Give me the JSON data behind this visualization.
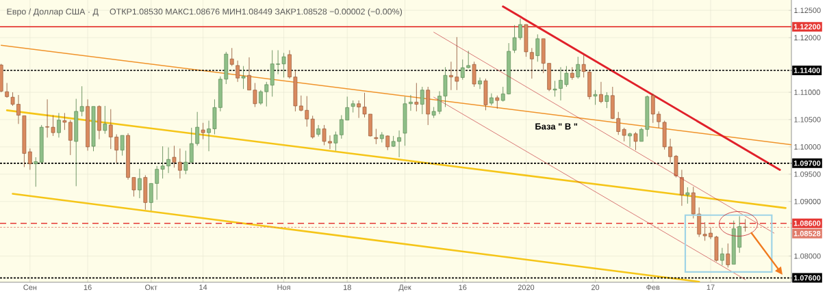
{
  "chart_data": {
    "type": "candlestick",
    "title": "Евро / Доллар США · Д",
    "subtitle": "ОТКР1.08530 МАКС1.08676 МИН1.08449 ЗАКР1.08528 −0.00002 (−0.00%)",
    "annotations": [
      "База \" В \""
    ],
    "categories": [
      null,
      null,
      null,
      null,
      null,
      "Сен",
      null,
      null,
      null,
      null,
      null,
      null,
      null,
      null,
      null,
      "16",
      null,
      null,
      null,
      null,
      null,
      null,
      null,
      null,
      null,
      null,
      "Окт",
      null,
      null,
      null,
      null,
      null,
      null,
      null,
      null,
      "14",
      null,
      null,
      null,
      null,
      null,
      null,
      null,
      null,
      null,
      null,
      null,
      null,
      null,
      "Ноя",
      null,
      null,
      null,
      null,
      null,
      null,
      null,
      null,
      null,
      null,
      "18",
      null,
      null,
      null,
      null,
      null,
      null,
      null,
      null,
      null,
      "Дек",
      null,
      null,
      null,
      null,
      null,
      null,
      null,
      null,
      null,
      "16",
      null,
      null,
      null,
      null,
      null,
      null,
      null,
      null,
      null,
      null,
      "2020",
      null,
      null,
      null,
      null,
      null,
      null,
      null,
      null,
      null,
      null,
      null,
      "20",
      null,
      null,
      null,
      null,
      null,
      null,
      null,
      null,
      null,
      "Фев",
      null,
      null,
      null,
      null,
      null,
      null,
      null,
      null,
      null,
      "17",
      null,
      null,
      null,
      null,
      null,
      null,
      null,
      null,
      null,
      null,
      null,
      null,
      null,
      null
    ],
    "ohlc": [
      [
        1.115,
        1.1152,
        1.11,
        1.1102
      ],
      [
        1.1101,
        1.1117,
        1.109,
        1.1092
      ],
      [
        1.1091,
        1.11,
        1.1075,
        1.1078
      ],
      [
        1.1078,
        1.1095,
        1.1042,
        1.1058
      ],
      [
        1.1057,
        1.1057,
        1.0963,
        1.0988
      ],
      [
        1.0991,
        1.0997,
        1.0958,
        1.0969
      ],
      [
        1.0969,
        1.0981,
        1.0927,
        1.0973
      ],
      [
        1.0972,
        1.104,
        1.097,
        1.1036
      ],
      [
        1.1037,
        1.1087,
        1.1017,
        1.1036
      ],
      [
        1.1036,
        1.1058,
        1.102,
        1.1026
      ],
      [
        1.1026,
        1.1062,
        1.1017,
        1.1049
      ],
      [
        1.1048,
        1.1062,
        1.1031,
        1.1045
      ],
      [
        1.1045,
        1.1049,
        1.0985,
        1.1012
      ],
      [
        1.101,
        1.1088,
        1.0928,
        1.1065
      ],
      [
        1.1065,
        1.1111,
        1.1056,
        1.1074
      ],
      [
        1.1074,
        1.1087,
        1.0993,
        1.1
      ],
      [
        1.1001,
        1.1074,
        1.0992,
        1.1074
      ],
      [
        1.1074,
        1.1076,
        1.1014,
        1.103
      ],
      [
        1.103,
        1.1075,
        1.1024,
        1.1042
      ],
      [
        1.104,
        1.1069,
        1.0996,
        1.1018
      ],
      [
        1.1018,
        1.1023,
        1.0971,
        1.0994
      ],
      [
        1.0994,
        1.1021,
        1.0984,
        1.1021
      ],
      [
        1.1021,
        1.1025,
        1.094,
        1.0944
      ],
      [
        1.0944,
        1.0944,
        1.0909,
        1.0921
      ],
      [
        1.0921,
        1.096,
        1.0906,
        1.0942
      ],
      [
        1.0944,
        1.0948,
        1.0885,
        1.0898
      ],
      [
        1.0898,
        1.0933,
        1.0883,
        1.0933
      ],
      [
        1.0933,
        1.0965,
        1.0903,
        1.0959
      ],
      [
        1.0959,
        1.1001,
        1.0942,
        1.0965
      ],
      [
        1.0965,
        1.0999,
        1.0952,
        1.0977
      ],
      [
        1.0981,
        1.1002,
        1.0962,
        1.0972
      ],
      [
        1.0972,
        1.0997,
        1.0942,
        1.0957
      ],
      [
        1.0957,
        1.0993,
        1.095,
        1.0972
      ],
      [
        1.0972,
        1.1035,
        1.0971,
        1.1006
      ],
      [
        1.1006,
        1.1064,
        1.1002,
        1.1036
      ],
      [
        1.1031,
        1.1044,
        1.1014,
        1.1026
      ],
      [
        1.1026,
        1.1048,
        1.0992,
        1.1033
      ],
      [
        1.1033,
        1.1087,
        1.1023,
        1.1072
      ],
      [
        1.1072,
        1.1129,
        1.1065,
        1.1124
      ],
      [
        1.1124,
        1.1174,
        1.1115,
        1.117
      ],
      [
        1.1161,
        1.1181,
        1.1148,
        1.1151
      ],
      [
        1.1149,
        1.1158,
        1.1119,
        1.1126
      ],
      [
        1.1126,
        1.1148,
        1.1106,
        1.1129
      ],
      [
        1.1131,
        1.1164,
        1.1104,
        1.1104
      ],
      [
        1.1104,
        1.1117,
        1.1073,
        1.1079
      ],
      [
        1.108,
        1.1104,
        1.1077,
        1.1101
      ],
      [
        1.1101,
        1.1119,
        1.1074,
        1.1114
      ],
      [
        1.1113,
        1.1177,
        1.1092,
        1.1152
      ],
      [
        1.1151,
        1.1177,
        1.1133,
        1.1152
      ],
      [
        1.1152,
        1.1172,
        1.1127,
        1.1165
      ],
      [
        1.1169,
        1.1177,
        1.1125,
        1.1128
      ],
      [
        1.1128,
        1.114,
        1.1065,
        1.1075
      ],
      [
        1.1075,
        1.1094,
        1.1065,
        1.1067
      ],
      [
        1.1067,
        1.1093,
        1.1037,
        1.1051
      ],
      [
        1.1051,
        1.1057,
        1.1015,
        1.1018
      ],
      [
        1.1023,
        1.104,
        1.1019,
        1.1033
      ],
      [
        1.1033,
        1.104,
        1.1003,
        1.101
      ],
      [
        1.101,
        1.1021,
        1.0996,
        1.1007
      ],
      [
        1.1007,
        1.1028,
        1.0993,
        1.1022
      ],
      [
        1.1022,
        1.1058,
        1.1015,
        1.105
      ],
      [
        1.1049,
        1.1092,
        1.1049,
        1.1072
      ],
      [
        1.1074,
        1.1085,
        1.1063,
        1.1079
      ],
      [
        1.1079,
        1.1085,
        1.1053,
        1.1073
      ],
      [
        1.1073,
        1.1099,
        1.1054,
        1.106
      ],
      [
        1.106,
        1.106,
        1.1019,
        1.102
      ],
      [
        1.1017,
        1.1033,
        1.1005,
        1.1015
      ],
      [
        1.1015,
        1.1027,
        1.1008,
        1.1022
      ],
      [
        1.102,
        1.1021,
        1.0994,
        1.1
      ],
      [
        1.1001,
        1.102,
        1.1,
        1.101
      ],
      [
        1.101,
        1.103,
        1.0981,
        1.1017
      ],
      [
        1.1025,
        1.1092,
        1.1002,
        1.1079
      ],
      [
        1.1079,
        1.1095,
        1.1066,
        1.1082
      ],
      [
        1.1082,
        1.1117,
        1.1065,
        1.1078
      ],
      [
        1.1078,
        1.111,
        1.106,
        1.1104
      ],
      [
        1.1104,
        1.111,
        1.104,
        1.106
      ],
      [
        1.1058,
        1.1073,
        1.1053,
        1.1065
      ],
      [
        1.1065,
        1.1102,
        1.106,
        1.1093
      ],
      [
        1.1093,
        1.1146,
        1.1073,
        1.1131
      ],
      [
        1.1131,
        1.1156,
        1.1104,
        1.1128
      ],
      [
        1.1128,
        1.1201,
        1.1104,
        1.112
      ],
      [
        1.1127,
        1.116,
        1.1123,
        1.1145
      ],
      [
        1.1145,
        1.1176,
        1.1144,
        1.1149
      ],
      [
        1.1151,
        1.1156,
        1.111,
        1.1115
      ],
      [
        1.1115,
        1.1127,
        1.1106,
        1.1121
      ],
      [
        1.1121,
        1.1125,
        1.1067,
        1.1077
      ],
      [
        1.108,
        1.1098,
        1.1076,
        1.109
      ],
      [
        1.109,
        1.1094,
        1.107,
        1.1085
      ],
      [
        1.1085,
        1.111,
        1.1083,
        1.1097
      ],
      [
        1.1097,
        1.119,
        1.1096,
        1.1175
      ],
      [
        1.1177,
        1.1223,
        1.1172,
        1.12
      ],
      [
        1.12,
        1.1235,
        1.1196,
        1.1224
      ],
      [
        1.1224,
        1.1224,
        1.1165,
        1.1174
      ],
      [
        1.1173,
        1.1181,
        1.1125,
        1.1161
      ],
      [
        1.1167,
        1.1206,
        1.1156,
        1.1198
      ],
      [
        1.1198,
        1.1198,
        1.1135,
        1.1153
      ],
      [
        1.1153,
        1.1153,
        1.1102,
        1.1105
      ],
      [
        1.1104,
        1.1121,
        1.1092,
        1.1106
      ],
      [
        1.1107,
        1.1146,
        1.1085,
        1.1122
      ],
      [
        1.1114,
        1.1148,
        1.111,
        1.1135
      ],
      [
        1.1135,
        1.1146,
        1.1123,
        1.1127
      ],
      [
        1.1128,
        1.1165,
        1.1125,
        1.1151
      ],
      [
        1.1151,
        1.1169,
        1.1127,
        1.1138
      ],
      [
        1.1137,
        1.114,
        1.1087,
        1.1092
      ],
      [
        1.1093,
        1.1104,
        1.1077,
        1.1096
      ],
      [
        1.1096,
        1.1119,
        1.108,
        1.1083
      ],
      [
        1.1083,
        1.11,
        1.1071,
        1.1094
      ],
      [
        1.1094,
        1.111,
        1.1051,
        1.1052
      ],
      [
        1.1052,
        1.1064,
        1.1022,
        1.1028
      ],
      [
        1.1032,
        1.1035,
        1.101,
        1.1021
      ],
      [
        1.102,
        1.1026,
        1.1,
        1.1024
      ],
      [
        1.1024,
        1.1027,
        1.0994,
        1.101
      ],
      [
        1.101,
        1.1035,
        1.101,
        1.1032
      ],
      [
        1.1032,
        1.1094,
        1.1019,
        1.1092
      ],
      [
        1.1094,
        1.1097,
        1.1044,
        1.106
      ],
      [
        1.106,
        1.1065,
        1.1035,
        1.1046
      ],
      [
        1.1045,
        1.1048,
        1.0995,
        1.1
      ],
      [
        1.1,
        1.1015,
        1.097,
        1.0982
      ],
      [
        1.0983,
        1.0985,
        1.0944,
        1.0947
      ],
      [
        1.0944,
        1.0958,
        1.0892,
        1.0912
      ],
      [
        1.0912,
        1.0926,
        1.0896,
        1.0916
      ],
      [
        1.0916,
        1.0927,
        1.0869,
        1.0877
      ],
      [
        1.0877,
        1.0889,
        1.0835,
        1.084
      ],
      [
        1.084,
        1.0862,
        1.0828,
        1.0837
      ],
      [
        1.0842,
        1.0852,
        1.0831,
        1.0835
      ],
      [
        1.0835,
        1.0837,
        1.079,
        1.0792
      ],
      [
        1.0792,
        1.0815,
        1.0783,
        1.0804
      ],
      [
        1.0804,
        1.0823,
        1.0779,
        1.0784
      ],
      [
        1.0785,
        1.0865,
        1.0785,
        1.085
      ],
      [
        1.0816,
        1.0873,
        1.0806,
        1.0854
      ],
      [
        1.0853,
        1.08676,
        1.08449,
        1.08528
      ],
      null,
      null,
      null,
      null,
      null,
      null,
      null,
      null
    ],
    "series": [
      {
        "type": "line",
        "color": "#f0932b",
        "values": [
          1.1186,
          null,
          null,
          null,
          null,
          null,
          null,
          null,
          null,
          null,
          null,
          null,
          null,
          null,
          null,
          null,
          null,
          null,
          null,
          null,
          null,
          null,
          null,
          null,
          null,
          null,
          null,
          null,
          null,
          null,
          null,
          null,
          null,
          null,
          null,
          null,
          null,
          null,
          null,
          null,
          null,
          null,
          null,
          null,
          null,
          null,
          null,
          null,
          null,
          null,
          null,
          null,
          null,
          null,
          null,
          null,
          null,
          null,
          null,
          null,
          null,
          null,
          null,
          null,
          null,
          null,
          null,
          null,
          null,
          null,
          null,
          null,
          null,
          null,
          null,
          null,
          null,
          null,
          null,
          null,
          null,
          null,
          null,
          null,
          null,
          null,
          null,
          null,
          null,
          null,
          null,
          null,
          null,
          null,
          null,
          null,
          null,
          null,
          null,
          null,
          null,
          null,
          null,
          null,
          null,
          null,
          null,
          null,
          null,
          null,
          null,
          null,
          null,
          null,
          null,
          null,
          null,
          null,
          null,
          null,
          null,
          null,
          null,
          null,
          null,
          null,
          null,
          null,
          null,
          null,
          null,
          null,
          null,
          null,
          null,
          null,
          null,
          1.1004
        ]
      },
      {
        "type": "line",
        "color": "#f5c518",
        "values": [
          null,
          1.1067,
          null,
          null,
          null,
          null,
          null,
          null,
          null,
          null,
          null,
          null,
          null,
          null,
          null,
          null,
          null,
          null,
          null,
          null,
          null,
          null,
          null,
          null,
          null,
          null,
          null,
          null,
          null,
          null,
          null,
          null,
          null,
          null,
          null,
          null,
          null,
          null,
          null,
          null,
          null,
          null,
          null,
          null,
          null,
          null,
          null,
          null,
          null,
          null,
          null,
          null,
          null,
          null,
          null,
          null,
          null,
          null,
          null,
          null,
          null,
          null,
          null,
          null,
          null,
          null,
          null,
          null,
          null,
          null,
          null,
          null,
          null,
          null,
          null,
          null,
          null,
          null,
          null,
          null,
          null,
          null,
          null,
          null,
          null,
          null,
          null,
          null,
          null,
          null,
          null,
          null,
          null,
          null,
          null,
          null,
          null,
          null,
          null,
          null,
          null,
          null,
          null,
          null,
          null,
          null,
          null,
          null,
          null,
          null,
          null,
          null,
          null,
          null,
          null,
          null,
          null,
          null,
          null,
          null,
          null,
          null,
          null,
          null,
          null,
          null,
          null,
          null,
          null,
          null,
          null,
          null,
          null,
          null,
          null,
          null,
          1.0888,
          null
        ]
      },
      {
        "type": "line",
        "color": "#f5c518",
        "values": [
          null,
          null,
          1.0914,
          null,
          null,
          null,
          null,
          null,
          null,
          null,
          null,
          null,
          null,
          null,
          null,
          null,
          null,
          null,
          null,
          null,
          null,
          null,
          null,
          null,
          null,
          null,
          null,
          null,
          null,
          null,
          null,
          null,
          null,
          null,
          null,
          null,
          null,
          null,
          null,
          null,
          null,
          null,
          null,
          null,
          null,
          null,
          null,
          null,
          null,
          null,
          null,
          null,
          null,
          null,
          null,
          null,
          null,
          null,
          null,
          null,
          null,
          null,
          null,
          null,
          null,
          null,
          null,
          null,
          null,
          null,
          null,
          null,
          null,
          null,
          null,
          null,
          null,
          null,
          null,
          null,
          null,
          null,
          null,
          null,
          null,
          null,
          null,
          null,
          null,
          null,
          null,
          null,
          null,
          null,
          null,
          null,
          null,
          null,
          null,
          null,
          null,
          null,
          null,
          null,
          null,
          null,
          null,
          null,
          null,
          null,
          null,
          null,
          null,
          null,
          null,
          null,
          null,
          null,
          null,
          null,
          null,
          1.0753,
          null,
          null,
          null,
          null,
          null,
          null,
          null,
          null,
          null,
          null,
          null,
          null,
          null,
          null,
          null,
          null
        ]
      },
      {
        "type": "line",
        "color": "#e0202a",
        "values": [
          null,
          null,
          null,
          null,
          null,
          null,
          null,
          null,
          null,
          null,
          null,
          null,
          null,
          null,
          null,
          null,
          null,
          null,
          null,
          null,
          null,
          null,
          null,
          null,
          null,
          null,
          null,
          null,
          null,
          null,
          null,
          null,
          null,
          null,
          null,
          null,
          null,
          null,
          null,
          null,
          null,
          null,
          null,
          null,
          null,
          null,
          null,
          null,
          null,
          null,
          null,
          null,
          null,
          null,
          null,
          null,
          null,
          null,
          null,
          null,
          null,
          null,
          null,
          null,
          null,
          null,
          null,
          null,
          null,
          null,
          null,
          null,
          null,
          null,
          null,
          null,
          null,
          null,
          null,
          null,
          null,
          null,
          null,
          null,
          null,
          null,
          null,
          1.1257,
          null,
          null,
          null,
          null,
          null,
          null,
          null,
          null,
          null,
          null,
          null,
          null,
          null,
          null,
          null,
          null,
          null,
          null,
          null,
          null,
          null,
          null,
          null,
          null,
          null,
          null,
          null,
          null,
          null,
          null,
          null,
          null,
          null,
          null,
          null,
          null,
          null,
          null,
          null,
          null,
          null,
          null,
          null,
          null,
          null,
          null,
          null,
          1.0958,
          null,
          null
        ]
      },
      {
        "type": "line",
        "color": "#c0202a",
        "values": [
          null,
          null,
          null,
          null,
          null,
          null,
          null,
          null,
          null,
          null,
          null,
          null,
          null,
          null,
          null,
          null,
          null,
          null,
          null,
          null,
          null,
          null,
          null,
          null,
          null,
          null,
          null,
          null,
          null,
          null,
          null,
          null,
          null,
          null,
          null,
          null,
          null,
          null,
          null,
          null,
          null,
          null,
          null,
          null,
          null,
          null,
          null,
          null,
          null,
          null,
          null,
          null,
          null,
          null,
          null,
          null,
          null,
          null,
          null,
          null,
          null,
          null,
          null,
          null,
          null,
          null,
          null,
          null,
          null,
          null,
          null,
          null,
          null,
          null,
          null,
          1.121,
          null,
          null,
          null,
          null,
          null,
          null,
          null,
          null,
          null,
          null,
          null,
          null,
          null,
          null,
          null,
          null,
          null,
          null,
          null,
          null,
          null,
          null,
          null,
          null,
          null,
          null,
          null,
          null,
          null,
          null,
          null,
          null,
          null,
          null,
          null,
          null,
          null,
          null,
          null,
          null,
          null,
          null,
          null,
          null,
          null,
          null,
          null,
          null,
          null,
          null,
          null,
          null,
          null,
          null,
          null,
          null,
          null,
          null,
          1.0842,
          null,
          null,
          null
        ]
      },
      {
        "type": "line",
        "color": "#c0202a",
        "values": [
          null,
          null,
          null,
          null,
          null,
          null,
          null,
          null,
          null,
          null,
          null,
          null,
          null,
          null,
          null,
          null,
          null,
          null,
          null,
          null,
          null,
          null,
          null,
          null,
          null,
          null,
          null,
          null,
          null,
          null,
          null,
          null,
          null,
          null,
          null,
          null,
          null,
          null,
          null,
          null,
          null,
          null,
          null,
          null,
          null,
          null,
          null,
          null,
          null,
          null,
          null,
          null,
          null,
          null,
          null,
          null,
          null,
          null,
          null,
          null,
          null,
          null,
          null,
          null,
          null,
          null,
          null,
          null,
          null,
          null,
          null,
          null,
          null,
          null,
          null,
          1.1091,
          null,
          null,
          null,
          null,
          null,
          null,
          null,
          null,
          null,
          null,
          null,
          null,
          null,
          null,
          null,
          null,
          null,
          null,
          null,
          null,
          null,
          null,
          null,
          null,
          null,
          null,
          null,
          null,
          null,
          null,
          null,
          null,
          null,
          null,
          null,
          null,
          null,
          null,
          null,
          null,
          null,
          null,
          null,
          null,
          null,
          null,
          null,
          null,
          null,
          null,
          null,
          null,
          null,
          1.0757,
          null,
          null,
          null,
          null,
          null,
          null,
          null,
          null
        ]
      }
    ],
    "ref_lines": [
      {
        "axis": "y",
        "value": 1.122,
        "label": "1.12200",
        "color": "#e53935",
        "line_style": "solid"
      },
      {
        "axis": "y",
        "value": 1.114,
        "label": "1.11400",
        "color": "#000000",
        "line_style": "dotted"
      },
      {
        "axis": "y",
        "value": 1.097,
        "label": "1.09700",
        "color": "#000000",
        "line_style": "dotted"
      },
      {
        "axis": "y",
        "value": 1.086,
        "label": "1.08600",
        "color": "#e53935",
        "line_style": "dashed"
      },
      {
        "axis": "y",
        "value": 1.08528,
        "label": "1.08528",
        "color": "#e07b6a",
        "line_style": "dotted"
      },
      {
        "axis": "y",
        "value": 1.076,
        "label": "1.07600",
        "color": "#000000",
        "line_style": "dotted"
      }
    ],
    "ylim": [
      1.0752,
      1.1269
    ],
    "yticks": [
      {
        "value": 1.08,
        "label": "1.08000"
      },
      {
        "value": 1.09,
        "label": "1.09000"
      },
      {
        "value": 1.095,
        "label": "1.09500"
      },
      {
        "value": 1.1,
        "label": "1.10000"
      },
      {
        "value": 1.105,
        "label": "1.10500"
      },
      {
        "value": 1.11,
        "label": "1.11000"
      },
      {
        "value": 1.12,
        "label": "1.12000"
      },
      {
        "value": 1.125,
        "label": "1.12500"
      }
    ],
    "grid": true
  }
}
